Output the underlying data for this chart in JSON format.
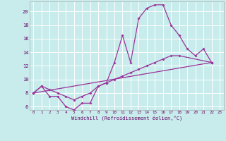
{
  "bg_color": "#c8ecec",
  "line_color": "#993399",
  "grid_color": "#ffffff",
  "xlabel": "Windchill (Refroidissement éolien,°C)",
  "ylim": [
    5.5,
    21.5
  ],
  "xlim": [
    -0.5,
    23.5
  ],
  "yticks": [
    6,
    8,
    10,
    12,
    14,
    16,
    18,
    20
  ],
  "xticks": [
    0,
    1,
    2,
    3,
    4,
    5,
    6,
    7,
    8,
    9,
    10,
    11,
    12,
    13,
    14,
    15,
    16,
    17,
    18,
    19,
    20,
    21,
    22,
    23
  ],
  "curve1_x": [
    0,
    1,
    2,
    3,
    4,
    5,
    6,
    7,
    8,
    9,
    10,
    11,
    12,
    13,
    14,
    15,
    16,
    17,
    18,
    19,
    20,
    21,
    22
  ],
  "curve1_y": [
    8.0,
    9.0,
    7.5,
    7.5,
    6.0,
    5.5,
    6.5,
    6.5,
    9.0,
    9.5,
    12.5,
    16.5,
    12.5,
    19.0,
    20.5,
    21.0,
    21.0,
    18.0,
    16.5,
    14.5,
    13.5,
    14.5,
    12.5
  ],
  "curve2_x": [
    0,
    1,
    2,
    3,
    4,
    5,
    6,
    7,
    8,
    9,
    10,
    11,
    12,
    13,
    14,
    15,
    16,
    17,
    18,
    22
  ],
  "curve2_y": [
    8.0,
    9.0,
    8.5,
    8.0,
    7.5,
    7.0,
    7.5,
    8.0,
    9.0,
    9.5,
    10.0,
    10.5,
    11.0,
    11.5,
    12.0,
    12.5,
    13.0,
    13.5,
    13.5,
    12.5
  ],
  "curve3_x": [
    0,
    22
  ],
  "curve3_y": [
    8.0,
    12.5
  ]
}
